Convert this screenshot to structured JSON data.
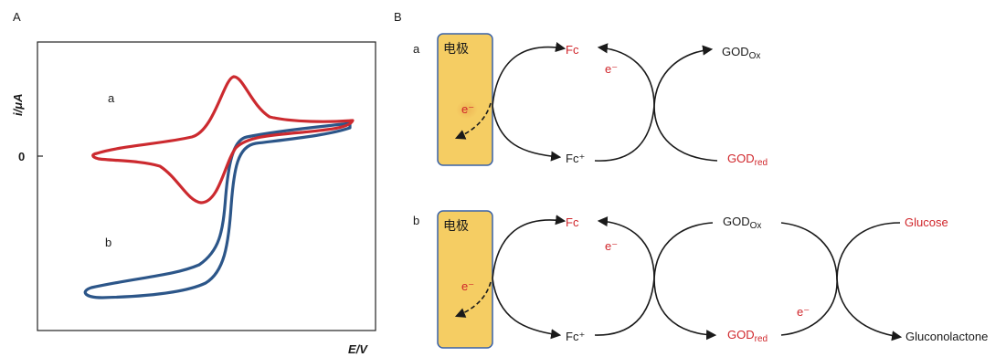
{
  "colors": {
    "curve_a": "#cc2a2f",
    "curve_b": "#2c5689",
    "electrode_fill": "#f5cd63",
    "electrode_border": "#3a62a7",
    "red_text": "#d0262b",
    "black_text": "#1a1a1a"
  },
  "panel_a": {
    "label": "A",
    "y_axis_label": "i/μA",
    "x_axis_label": "E/V",
    "zero_label": "0",
    "curve_a_label": "a",
    "curve_b_label": "b"
  },
  "panel_b": {
    "label": "B",
    "row_a": {
      "label": "a",
      "electrode": "电极",
      "electron": "e⁻",
      "fc": "Fc",
      "fc_plus": "Fc⁺",
      "god_ox_base": "GOD",
      "god_ox_sub": "Ox",
      "god_red_base": "GOD",
      "god_red_sub": "red"
    },
    "row_b": {
      "label": "b",
      "electrode": "电极",
      "electron": "e⁻",
      "fc": "Fc",
      "fc_plus": "Fc⁺",
      "god_ox_base": "GOD",
      "god_ox_sub": "Ox",
      "god_red_base": "GOD",
      "god_red_sub": "red",
      "glucose": "Glucose",
      "gluconolactone": "Gluconolactone"
    }
  }
}
